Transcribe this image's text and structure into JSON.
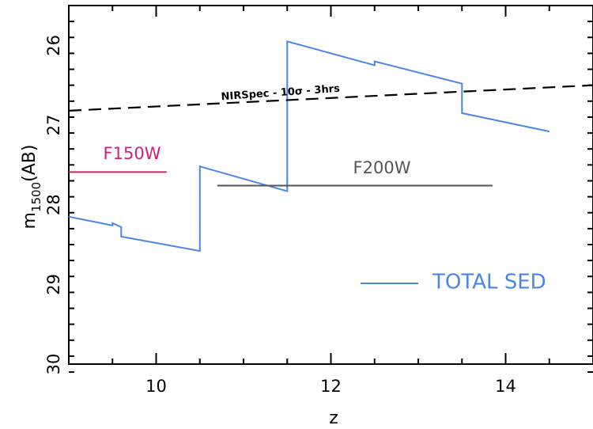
{
  "chart_data": {
    "type": "line",
    "xlabel": "z",
    "ylabel": {
      "base": "m",
      "subscript": "1500",
      "suffix": "(AB)"
    },
    "xlim": [
      9,
      15
    ],
    "ylim": [
      30,
      25.5
    ],
    "y_inverted": true,
    "x_ticks": [
      10,
      12,
      14
    ],
    "x_tick_labels": [
      "10",
      "12",
      "14"
    ],
    "y_ticks": [
      26,
      27,
      28,
      29,
      30
    ],
    "y_tick_labels": [
      "26",
      "27",
      "28",
      "29",
      "30"
    ],
    "grid": false,
    "series": [
      {
        "name": "TOTAL SED",
        "color": "#4a86e8",
        "style": "solid",
        "x": [
          9.0,
          9.5,
          9.5,
          9.6,
          9.6,
          10.5,
          10.5,
          11.5,
          11.5,
          12.5,
          12.5,
          13.5,
          13.5,
          14.5
        ],
        "y": [
          28.15,
          28.26,
          28.23,
          28.28,
          28.4,
          28.58,
          27.52,
          27.83,
          25.95,
          26.25,
          26.2,
          26.48,
          26.85,
          27.08
        ]
      },
      {
        "name": "NIRSpec - 10σ - 3hrs",
        "color": "#000000",
        "style": "dashed",
        "x": [
          9.0,
          15.0
        ],
        "y": [
          26.82,
          26.5
        ]
      },
      {
        "name": "F150W",
        "color": "#d0206e",
        "style": "solid",
        "x": [
          9.0,
          10.12
        ],
        "y": [
          27.59,
          27.59
        ]
      },
      {
        "name": "F200W",
        "color": "#555555",
        "style": "solid",
        "x": [
          10.7,
          13.85
        ],
        "y": [
          27.76,
          27.76
        ]
      }
    ],
    "annotations": {
      "nirspec": "NIRSpec - 10σ - 3hrs",
      "f150w": "F150W",
      "f200w": "F200W",
      "legend_total": "TOTAL SED"
    }
  }
}
